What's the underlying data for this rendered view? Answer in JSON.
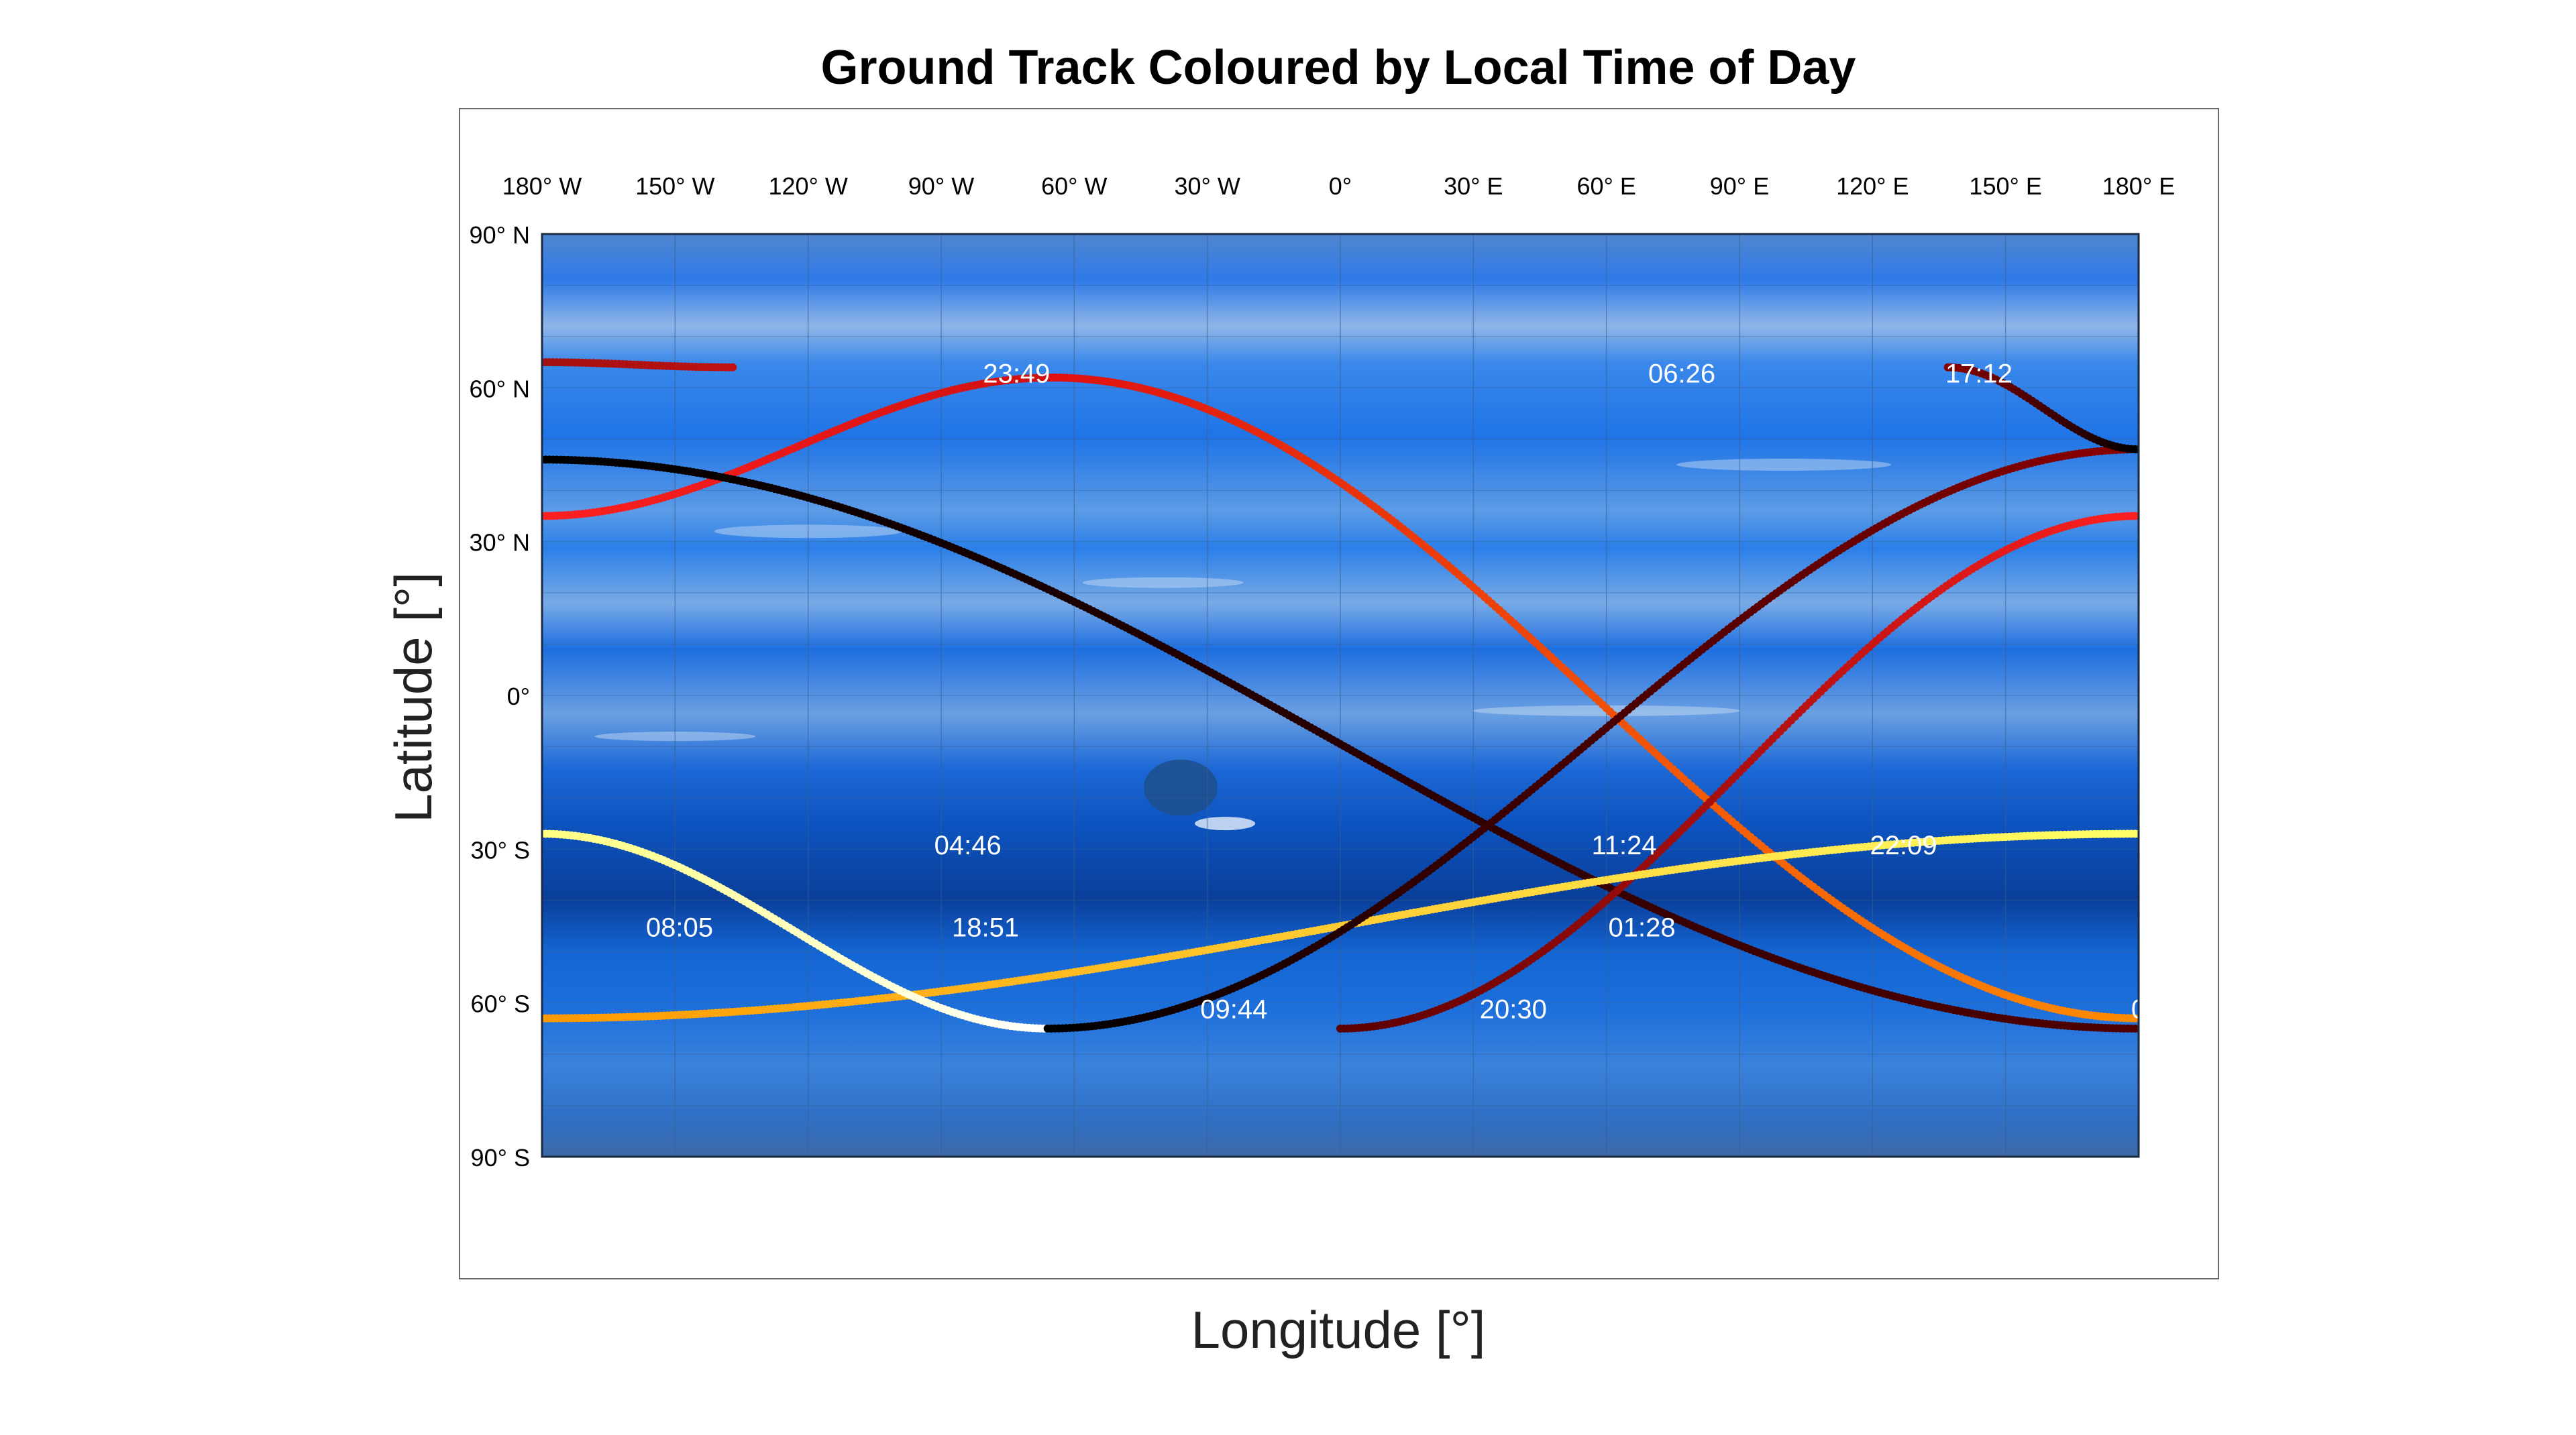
{
  "chart_data": {
    "type": "scatter",
    "title": "Ground Track Coloured by Local Time of Day",
    "xlabel": "Longitude [°]",
    "ylabel": "Latitude [°]",
    "xlim": [
      -180,
      180
    ],
    "ylim": [
      -90,
      90
    ],
    "grid": true,
    "legend": "none",
    "x_ticks": [
      {
        "value": -180,
        "label": "180° W"
      },
      {
        "value": -150,
        "label": "150° W"
      },
      {
        "value": -120,
        "label": "120° W"
      },
      {
        "value": -90,
        "label": "90° W"
      },
      {
        "value": -60,
        "label": "60° W"
      },
      {
        "value": -30,
        "label": "30° W"
      },
      {
        "value": 0,
        "label": "0°"
      },
      {
        "value": 30,
        "label": "30° E"
      },
      {
        "value": 60,
        "label": "60° E"
      },
      {
        "value": 90,
        "label": "90° E"
      },
      {
        "value": 120,
        "label": "120° E"
      },
      {
        "value": 150,
        "label": "150° E"
      },
      {
        "value": 180,
        "label": "180° E"
      }
    ],
    "y_ticks": [
      {
        "value": 90,
        "label": "90° N"
      },
      {
        "value": 60,
        "label": "60° N"
      },
      {
        "value": 30,
        "label": "30° N"
      },
      {
        "value": 0,
        "label": "0°"
      },
      {
        "value": -30,
        "label": "30° S"
      },
      {
        "value": -60,
        "label": "60° S"
      },
      {
        "value": -90,
        "label": "90° S"
      }
    ],
    "track_colormap": [
      "#000000",
      "#8c0000",
      "#ff1a00",
      "#ff8c00",
      "#ffff1a",
      "#ffffff"
    ],
    "background_colors": {
      "band_light": "#6fa5e8",
      "band_mid": "#2a7fe6",
      "band_dark": "#0a4bb8",
      "spot": "#1e4f8c"
    },
    "inclination_deg": 65,
    "track_segments": [
      {
        "lon_start": -180,
        "lon_end": -137,
        "lat_start": 65,
        "lat_end": 64,
        "color_start": "#a01010",
        "color_end": "#c01212"
      },
      {
        "lon_start": -180,
        "lon_end": -65,
        "lat_start": 35,
        "lat_end": 62,
        "color_start": "#ff2020",
        "color_end": "#d01010"
      },
      {
        "lon_start": -65,
        "lon_end": 180,
        "lat_start": 62,
        "lat_end": -63,
        "color_start": "#e01010",
        "color_end": "#ff8c00"
      },
      {
        "lon_start": -180,
        "lon_end": 180,
        "lat_start": 46,
        "lat_end": -65,
        "color_start": "#000000",
        "color_end": "#500000"
      },
      {
        "lon_start": 0,
        "lon_end": 180,
        "lat_start": -65,
        "lat_end": 35,
        "color_start": "#5a0000",
        "color_end": "#ff2020"
      },
      {
        "lon_start": -180,
        "lon_end": 180,
        "lat_start": -63,
        "lat_end": -27,
        "color_start": "#ff9900",
        "color_end": "#ffff66"
      },
      {
        "lon_start": -180,
        "lon_end": -66,
        "lat_start": -27,
        "lat_end": -65,
        "color_start": "#ffff80",
        "color_end": "#ffffff"
      },
      {
        "lon_start": -66,
        "lon_end": 180,
        "lat_start": -65,
        "lat_end": 48,
        "color_start": "#000000",
        "color_end": "#8c0000"
      },
      {
        "lon_start": 137,
        "lon_end": 180,
        "lat_start": 64,
        "lat_end": 48,
        "color_start": "#8c0000",
        "color_end": "#000000"
      }
    ],
    "time_labels": [
      {
        "text": "23:49",
        "lon": -73,
        "lat": 61
      },
      {
        "text": "06:26",
        "lon": 77,
        "lat": 61
      },
      {
        "text": "17:12",
        "lon": 144,
        "lat": 61
      },
      {
        "text": "04:46",
        "lon": -84,
        "lat": -31
      },
      {
        "text": "11:24",
        "lon": 64,
        "lat": -31
      },
      {
        "text": "22:09",
        "lon": 127,
        "lat": -31
      },
      {
        "text": "08:05",
        "lon": -149,
        "lat": -47
      },
      {
        "text": "18:51",
        "lon": -80,
        "lat": -47
      },
      {
        "text": "01:28",
        "lon": 68,
        "lat": -47
      },
      {
        "text": "09:44",
        "lon": -24,
        "lat": -63
      },
      {
        "text": "20:30",
        "lon": 39,
        "lat": -63
      },
      {
        "text": "0",
        "lon": 180,
        "lat": -63
      }
    ]
  }
}
